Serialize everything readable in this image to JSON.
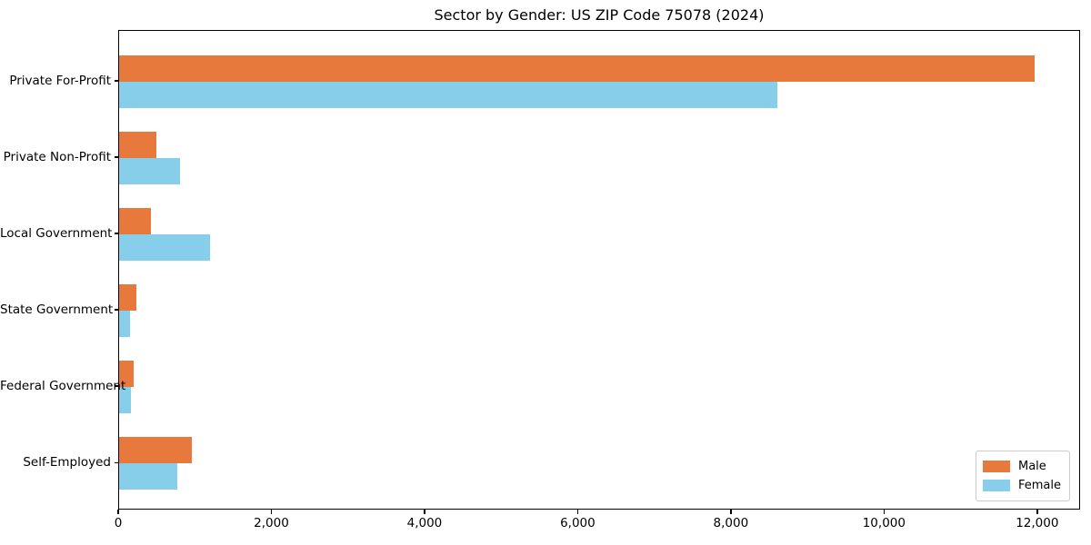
{
  "chart_data": {
    "type": "bar",
    "orientation": "horizontal",
    "title": "Sector by Gender: US ZIP Code 75078 (2024)",
    "categories": [
      "Private For-Profit",
      "Private Non-Profit",
      "Local Government",
      "State Government",
      "Federal Government",
      "Self-Employed"
    ],
    "series": [
      {
        "name": "Male",
        "color": "#e8793d",
        "values": [
          11950,
          490,
          420,
          225,
          195,
          950
        ]
      },
      {
        "name": "Female",
        "color": "#87ceeb",
        "values": [
          8590,
          790,
          1190,
          145,
          150,
          755
        ]
      }
    ],
    "xlabel": "",
    "ylabel": "",
    "xlim": [
      0,
      12560
    ],
    "x_ticks": [
      0,
      2000,
      4000,
      6000,
      8000,
      10000,
      12000
    ],
    "x_tick_labels": [
      "0",
      "2,000",
      "4,000",
      "6,000",
      "8,000",
      "10,000",
      "12,000"
    ],
    "grid": false,
    "legend_position": "lower right",
    "background_color": "#ffffff",
    "spine_color": "#000000"
  }
}
